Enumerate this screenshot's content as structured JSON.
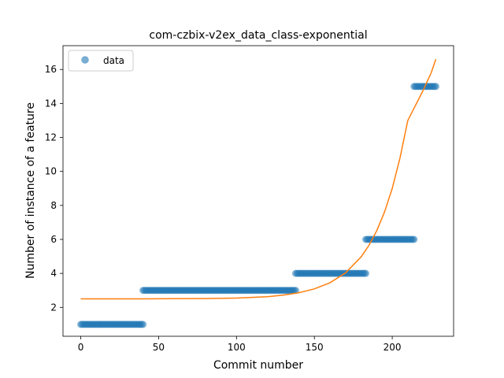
{
  "chart_data": {
    "type": "scatter",
    "title": "com-czbix-v2ex_data_class-exponential",
    "xlabel": "Commit number",
    "ylabel": "Number of instance of a feature",
    "xlim": [
      -11.4,
      239.4
    ],
    "ylim": [
      0.3,
      17.4
    ],
    "xticks": [
      0,
      50,
      100,
      150,
      200
    ],
    "yticks": [
      2,
      4,
      6,
      8,
      10,
      12,
      14,
      16
    ],
    "legend": {
      "label": "data",
      "location": "upper left"
    },
    "colors": {
      "data": "#1f77b4",
      "fit": "#ff7f0e"
    },
    "series": [
      {
        "name": "data",
        "kind": "points",
        "segments": [
          {
            "x_start": 0,
            "x_end": 40,
            "y": 1
          },
          {
            "x_start": 40,
            "x_end": 138,
            "y": 3
          },
          {
            "x_start": 138,
            "x_end": 183,
            "y": 4
          },
          {
            "x_start": 183,
            "x_end": 214,
            "y": 6
          },
          {
            "x_start": 214,
            "x_end": 228,
            "y": 15
          }
        ]
      },
      {
        "kind": "line",
        "x": [
          0,
          20,
          40,
          60,
          80,
          100,
          120,
          130,
          140,
          150,
          160,
          170,
          180,
          185,
          190,
          195,
          200,
          205,
          210,
          215,
          220,
          225,
          228
        ],
        "y": [
          2.5,
          2.5,
          2.5,
          2.51,
          2.52,
          2.55,
          2.63,
          2.72,
          2.86,
          3.09,
          3.45,
          4.03,
          4.97,
          5.64,
          6.5,
          7.6,
          9.0,
          10.8,
          13.0,
          13.9,
          14.8,
          15.8,
          16.6
        ]
      }
    ]
  }
}
